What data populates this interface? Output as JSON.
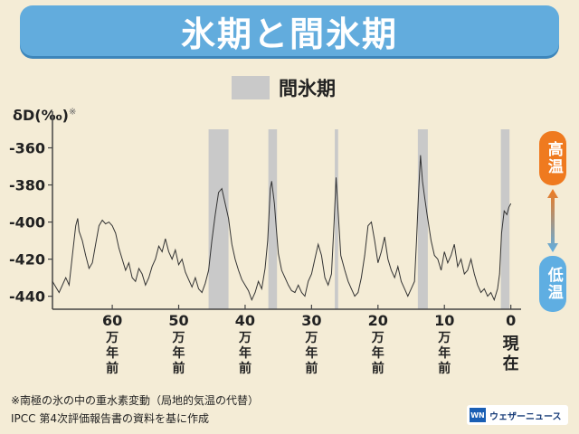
{
  "header": {
    "title": "氷期と間氷期"
  },
  "legend": {
    "label": "間氷期",
    "color": "#c9c9c9"
  },
  "y_unit": {
    "label": "δD(‰)",
    "mark": "※"
  },
  "side_labels": {
    "hot": "高温",
    "cold": "低温",
    "hot_color": "#ef7a1f",
    "cold_color": "#5faee2"
  },
  "footnotes": {
    "line1": "※南極の氷の中の重水素変動（局地的気温の代替）",
    "line2": "IPCC 第4次評価報告書の資料を基に作成"
  },
  "brand": {
    "logo": "WN",
    "name": "ウェザーニュース"
  },
  "chart_data": {
    "type": "line",
    "x_unit": "万年前",
    "x_ticks": [
      {
        "value": 60,
        "label": "60",
        "sub": "万年前"
      },
      {
        "value": 50,
        "label": "50",
        "sub": "万年前"
      },
      {
        "value": 40,
        "label": "40",
        "sub": "万年前"
      },
      {
        "value": 30,
        "label": "30",
        "sub": "万年前"
      },
      {
        "value": 20,
        "label": "20",
        "sub": "万年前"
      },
      {
        "value": 10,
        "label": "10",
        "sub": "万年前"
      },
      {
        "value": 0,
        "label": "0",
        "sub": "現在"
      }
    ],
    "y_ticks": [
      -360,
      -380,
      -400,
      -420,
      -440
    ],
    "ylim": [
      -447,
      -350
    ],
    "xlim": [
      69,
      -1
    ],
    "interglacials": [
      [
        45.5,
        42.5
      ],
      [
        36.5,
        35.2
      ],
      [
        26.5,
        26.0
      ],
      [
        14.0,
        12.5
      ],
      [
        1.5,
        0.2
      ]
    ],
    "series": [
      {
        "values": [
          [
            69,
            -432
          ],
          [
            68,
            -438
          ],
          [
            67,
            -430
          ],
          [
            66.5,
            -434
          ],
          [
            66,
            -418
          ],
          [
            65.5,
            -402
          ],
          [
            65.2,
            -398
          ],
          [
            65,
            -405
          ],
          [
            64.5,
            -410
          ],
          [
            64,
            -418
          ],
          [
            63.5,
            -425
          ],
          [
            63,
            -422
          ],
          [
            62.5,
            -412
          ],
          [
            62,
            -402
          ],
          [
            61.5,
            -399
          ],
          [
            61,
            -401
          ],
          [
            60.5,
            -400
          ],
          [
            60,
            -402
          ],
          [
            59.5,
            -406
          ],
          [
            59,
            -414
          ],
          [
            58.5,
            -420
          ],
          [
            58,
            -426
          ],
          [
            57.5,
            -422
          ],
          [
            57,
            -430
          ],
          [
            56.5,
            -432
          ],
          [
            56,
            -425
          ],
          [
            55.5,
            -428
          ],
          [
            55,
            -434
          ],
          [
            54.5,
            -430
          ],
          [
            54,
            -424
          ],
          [
            53.5,
            -420
          ],
          [
            53,
            -413
          ],
          [
            52.5,
            -416
          ],
          [
            52,
            -409
          ],
          [
            51.5,
            -416
          ],
          [
            51,
            -420
          ],
          [
            50.5,
            -415
          ],
          [
            50,
            -423
          ],
          [
            49.5,
            -420
          ],
          [
            49,
            -427
          ],
          [
            48.5,
            -431
          ],
          [
            48,
            -435
          ],
          [
            47.5,
            -430
          ],
          [
            47,
            -436
          ],
          [
            46.5,
            -438
          ],
          [
            46,
            -433
          ],
          [
            45.5,
            -426
          ],
          [
            45,
            -410
          ],
          [
            44.5,
            -396
          ],
          [
            44,
            -384
          ],
          [
            43.5,
            -382
          ],
          [
            43,
            -390
          ],
          [
            42.5,
            -398
          ],
          [
            42,
            -412
          ],
          [
            41.5,
            -420
          ],
          [
            41,
            -426
          ],
          [
            40.5,
            -431
          ],
          [
            40,
            -434
          ],
          [
            39.5,
            -437
          ],
          [
            39,
            -442
          ],
          [
            38.5,
            -438
          ],
          [
            38,
            -432
          ],
          [
            37.5,
            -436
          ],
          [
            37,
            -425
          ],
          [
            36.6,
            -410
          ],
          [
            36.2,
            -382
          ],
          [
            36,
            -378
          ],
          [
            35.6,
            -390
          ],
          [
            35.3,
            -404
          ],
          [
            35,
            -417
          ],
          [
            34.5,
            -426
          ],
          [
            34,
            -430
          ],
          [
            33.5,
            -434
          ],
          [
            33,
            -437
          ],
          [
            32.5,
            -438
          ],
          [
            32,
            -434
          ],
          [
            31.5,
            -438
          ],
          [
            31,
            -440
          ],
          [
            30.5,
            -432
          ],
          [
            30,
            -428
          ],
          [
            29.5,
            -420
          ],
          [
            29,
            -412
          ],
          [
            28.5,
            -418
          ],
          [
            28,
            -430
          ],
          [
            27.5,
            -434
          ],
          [
            27,
            -428
          ],
          [
            26.6,
            -400
          ],
          [
            26.3,
            -376
          ],
          [
            26,
            -394
          ],
          [
            25.6,
            -418
          ],
          [
            25,
            -426
          ],
          [
            24.5,
            -432
          ],
          [
            24,
            -436
          ],
          [
            23.5,
            -440
          ],
          [
            23,
            -438
          ],
          [
            22.5,
            -430
          ],
          [
            22,
            -418
          ],
          [
            21.5,
            -402
          ],
          [
            21,
            -400
          ],
          [
            20.5,
            -410
          ],
          [
            20,
            -422
          ],
          [
            19.5,
            -416
          ],
          [
            19,
            -408
          ],
          [
            18.5,
            -420
          ],
          [
            18,
            -426
          ],
          [
            17.5,
            -430
          ],
          [
            17,
            -424
          ],
          [
            16.5,
            -432
          ],
          [
            16,
            -436
          ],
          [
            15.5,
            -440
          ],
          [
            15,
            -436
          ],
          [
            14.5,
            -432
          ],
          [
            14.2,
            -410
          ],
          [
            13.9,
            -385
          ],
          [
            13.6,
            -364
          ],
          [
            13.3,
            -378
          ],
          [
            13,
            -386
          ],
          [
            12.6,
            -396
          ],
          [
            12,
            -410
          ],
          [
            11.5,
            -418
          ],
          [
            11,
            -420
          ],
          [
            10.5,
            -426
          ],
          [
            10,
            -416
          ],
          [
            9.5,
            -422
          ],
          [
            9,
            -418
          ],
          [
            8.5,
            -412
          ],
          [
            8,
            -424
          ],
          [
            7.5,
            -420
          ],
          [
            7,
            -428
          ],
          [
            6.5,
            -426
          ],
          [
            6,
            -420
          ],
          [
            5.5,
            -428
          ],
          [
            5,
            -434
          ],
          [
            4.5,
            -438
          ],
          [
            4,
            -436
          ],
          [
            3.5,
            -440
          ],
          [
            3,
            -438
          ],
          [
            2.5,
            -442
          ],
          [
            2,
            -436
          ],
          [
            1.7,
            -428
          ],
          [
            1.4,
            -406
          ],
          [
            1,
            -394
          ],
          [
            0.6,
            -396
          ],
          [
            0.3,
            -392
          ],
          [
            0,
            -390
          ]
        ]
      }
    ]
  }
}
